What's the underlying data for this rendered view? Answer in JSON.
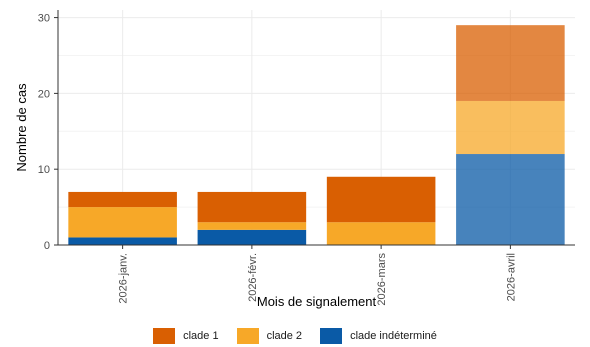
{
  "chart_data": {
    "type": "bar",
    "stacked": true,
    "categories": [
      "2026-janv.",
      "2026-févr.",
      "2026-mars",
      "2026-avril"
    ],
    "series": [
      {
        "name": "clade indéterminé",
        "color": "#0a5aa6",
        "values": [
          1,
          2,
          0,
          12
        ]
      },
      {
        "name": "clade 2",
        "color": "#f7a828",
        "values": [
          4,
          1,
          3,
          7
        ]
      },
      {
        "name": "clade 1",
        "color": "#d95f02",
        "values": [
          2,
          4,
          6,
          10
        ]
      }
    ],
    "legend_order": [
      "clade 1",
      "clade 2",
      "clade indéterminé"
    ],
    "legend_position": "bottom",
    "highlight_category": "2026-avril",
    "xlabel": "Mois de signalement",
    "ylabel": "Nombre de cas",
    "ylim": [
      0,
      31
    ],
    "yticks": [
      0,
      10,
      20,
      30
    ],
    "grid": true
  }
}
